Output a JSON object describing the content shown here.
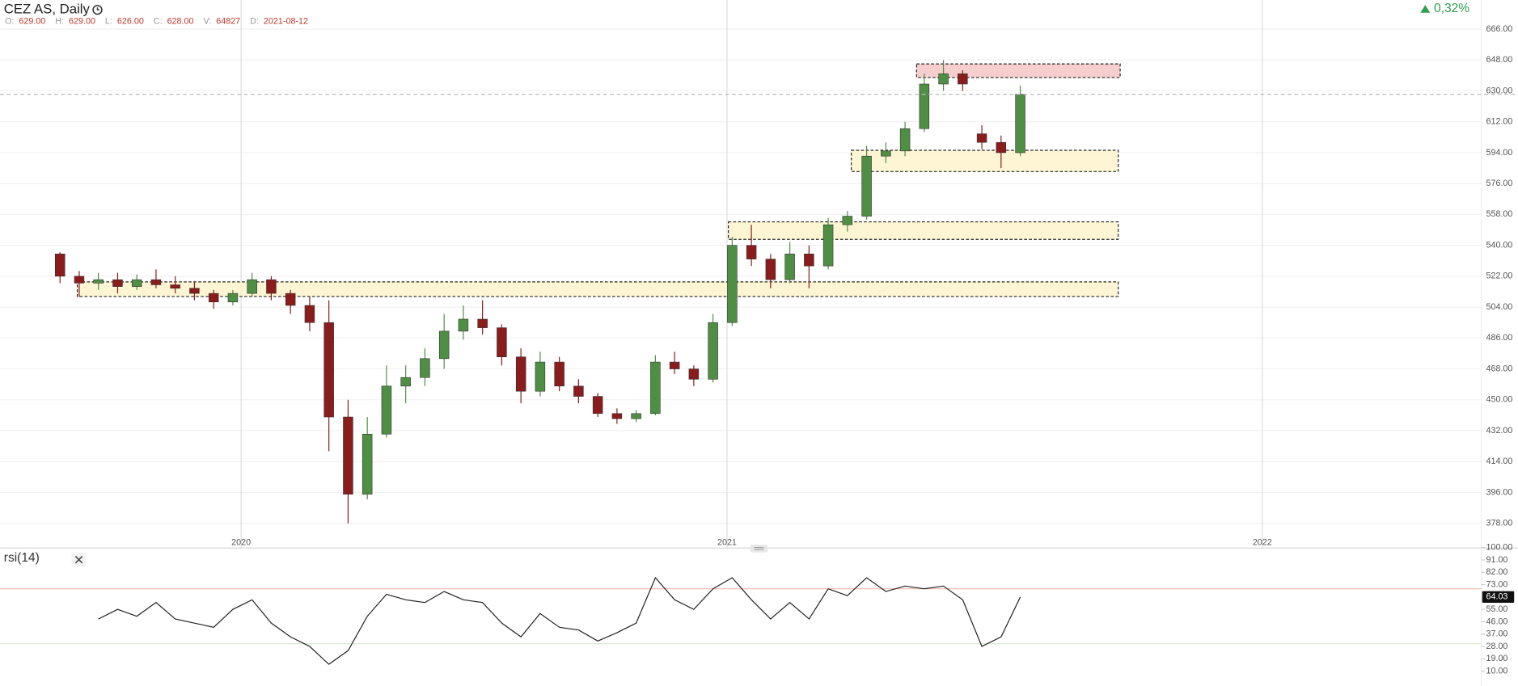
{
  "header": {
    "title": "CEZ AS, Daily",
    "legend": [
      {
        "key": "O:",
        "value": 629,
        "label": "629.00"
      },
      {
        "key": "H:",
        "value": 629,
        "label": "629.00"
      },
      {
        "key": "L:",
        "value": 626,
        "label": "626.00"
      },
      {
        "key": "C:",
        "value": 628,
        "label": "628.00"
      },
      {
        "key": "V:",
        "value": 64827
      },
      {
        "key": "D:",
        "value": "2021-08-12"
      }
    ],
    "change": {
      "value": 0.32,
      "label": "0,32%"
    }
  },
  "chart_data": [
    {
      "type": "candlestick",
      "x": [
        0,
        1,
        2,
        3,
        4,
        5,
        6,
        7,
        8,
        9,
        10,
        11,
        12,
        13,
        14,
        15,
        16,
        17,
        18,
        19,
        20,
        21,
        22,
        23,
        24,
        25,
        26,
        27,
        28,
        29,
        30,
        31,
        32,
        33,
        34,
        35,
        36,
        37,
        38,
        39,
        40,
        41,
        42,
        43,
        44,
        45,
        46,
        47,
        48,
        49,
        50
      ],
      "open": [
        535,
        522,
        518,
        520,
        516,
        520,
        517,
        515,
        512,
        507,
        512,
        520,
        512,
        505,
        495,
        440,
        395,
        430,
        458,
        463,
        474,
        490,
        497,
        492,
        475,
        455,
        472,
        458,
        452,
        442,
        439,
        442,
        472,
        468,
        462,
        495,
        540,
        532,
        520,
        535,
        528,
        552,
        557,
        592,
        595,
        608,
        634,
        640,
        605,
        600,
        594
      ],
      "high": [
        536,
        525,
        524,
        524,
        523,
        526,
        522,
        519,
        514,
        514,
        524,
        522,
        514,
        510,
        508,
        450,
        440,
        470,
        470,
        480,
        500,
        505,
        508,
        494,
        480,
        478,
        475,
        462,
        454,
        445,
        444,
        476,
        478,
        470,
        500,
        545,
        552,
        535,
        542,
        540,
        556,
        560,
        598,
        600,
        612,
        640,
        648,
        642,
        610,
        604,
        633
      ],
      "low": [
        518,
        510,
        514,
        512,
        514,
        515,
        512,
        508,
        503,
        505,
        510,
        508,
        500,
        490,
        420,
        378,
        392,
        428,
        448,
        458,
        468,
        485,
        488,
        470,
        448,
        452,
        455,
        448,
        440,
        436,
        437,
        441,
        465,
        458,
        460,
        493,
        528,
        515,
        518,
        515,
        526,
        548,
        555,
        588,
        592,
        606,
        630,
        630,
        596,
        585,
        592
      ],
      "close": [
        522,
        518,
        520,
        516,
        520,
        517,
        515,
        512,
        507,
        512,
        520,
        512,
        505,
        495,
        440,
        395,
        430,
        458,
        463,
        474,
        490,
        497,
        492,
        475,
        455,
        472,
        458,
        452,
        442,
        439,
        442,
        472,
        468,
        462,
        495,
        540,
        532,
        520,
        535,
        528,
        552,
        557,
        592,
        595,
        608,
        634,
        640,
        634,
        600,
        594,
        628
      ],
      "up_color": "#4f8f43",
      "down_color": "#8b1c1c",
      "xlim": [
        -3.125,
        74
      ],
      "xticks": [
        {
          "value": 9.43,
          "label": "2020"
        },
        {
          "value": 34.73,
          "label": "2021"
        },
        {
          "value": 62.6,
          "label": "2022"
        }
      ],
      "ylim": [
        363.9,
        682.9
      ],
      "yticks": [
        {
          "value": 378,
          "label": "378.00"
        },
        {
          "value": 396,
          "label": "396.00"
        },
        {
          "value": 414,
          "label": "414.00"
        },
        {
          "value": 432,
          "label": "432.00"
        },
        {
          "value": 450,
          "label": "450.00"
        },
        {
          "value": 468,
          "label": "468.00"
        },
        {
          "value": 486,
          "label": "486.00"
        },
        {
          "value": 504,
          "label": "504.00"
        },
        {
          "value": 522,
          "label": "522.00"
        },
        {
          "value": 540,
          "label": "540.00"
        },
        {
          "value": 558,
          "label": "558.00"
        },
        {
          "value": 576,
          "label": "576.00"
        },
        {
          "value": 594,
          "label": "594.00"
        },
        {
          "value": 612,
          "label": "612.00"
        },
        {
          "value": 630,
          "label": "630.00"
        },
        {
          "value": 648,
          "label": "648.00"
        },
        {
          "value": 666,
          "label": "666.00"
        }
      ],
      "grid": true,
      "zones": [
        {
          "top": 645.7,
          "bottom": 637.8,
          "start": 44.6,
          "end": 55.2,
          "color": "#f4c2c2"
        },
        {
          "top": 595.4,
          "bottom": 583,
          "start": 41.2,
          "end": 55.1,
          "color": "#fdf3c8"
        },
        {
          "top": 553.7,
          "bottom": 543.5,
          "start": 34.8,
          "end": 55.1,
          "color": "#fdf3c8"
        },
        {
          "top": 518.7,
          "bottom": 510.2,
          "start": 0.9,
          "end": 55.1,
          "color": "#fdf3c8"
        }
      ]
    },
    {
      "type": "line",
      "title": "rsi(14)",
      "x": [
        0,
        1,
        2,
        3,
        4,
        5,
        6,
        7,
        8,
        9,
        10,
        11,
        12,
        13,
        14,
        15,
        16,
        17,
        18,
        19,
        20,
        21,
        22,
        23,
        24,
        25,
        26,
        27,
        28,
        29,
        30,
        31,
        32,
        33,
        34,
        35,
        36,
        37,
        38,
        39,
        40,
        41,
        42,
        43,
        44,
        45,
        46,
        47,
        48,
        49,
        50
      ],
      "values": [
        null,
        null,
        48,
        55,
        50,
        60,
        48,
        45,
        42,
        55,
        62,
        45,
        35,
        28,
        15,
        25,
        50,
        66,
        62,
        60,
        68,
        62,
        60,
        45,
        35,
        52,
        42,
        40,
        32,
        38,
        45,
        78,
        62,
        55,
        70,
        78,
        62,
        48,
        60,
        48,
        70,
        65,
        78,
        68,
        72,
        70,
        72,
        62,
        28,
        35,
        64.03
      ],
      "color": "#222",
      "ylim": [
        0,
        100
      ],
      "yticks": [
        {
          "value": 10,
          "label": "10.00"
        },
        {
          "value": 19,
          "label": "19.00"
        },
        {
          "value": 28,
          "label": "28.00"
        },
        {
          "value": 37,
          "label": "37.00"
        },
        {
          "value": 46,
          "label": "46.00"
        },
        {
          "value": 55,
          "label": "55.00"
        },
        {
          "value": 73,
          "label": "73.00"
        },
        {
          "value": 82,
          "label": "82.00"
        },
        {
          "value": 91,
          "label": "91.00"
        },
        {
          "value": 100,
          "label": "100.00"
        }
      ],
      "levels": [
        30,
        70
      ]
    }
  ]
}
